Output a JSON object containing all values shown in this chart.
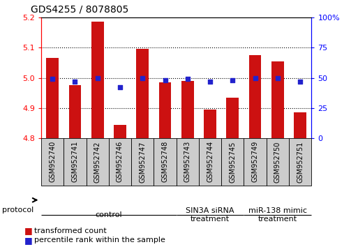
{
  "title": "GDS4255 / 8078805",
  "samples": [
    "GSM952740",
    "GSM952741",
    "GSM952742",
    "GSM952746",
    "GSM952747",
    "GSM952748",
    "GSM952743",
    "GSM952744",
    "GSM952745",
    "GSM952749",
    "GSM952750",
    "GSM952751"
  ],
  "transformed_count": [
    5.065,
    4.975,
    5.185,
    4.845,
    5.095,
    4.985,
    4.99,
    4.895,
    4.935,
    5.075,
    5.055,
    4.885
  ],
  "percentile_rank": [
    49,
    47,
    50,
    42,
    50,
    48,
    49,
    47,
    48,
    50,
    50,
    47
  ],
  "ylim_left": [
    4.8,
    5.2
  ],
  "ylim_right": [
    0,
    100
  ],
  "yticks_left": [
    4.8,
    4.9,
    5.0,
    5.1,
    5.2
  ],
  "yticks_right": [
    0,
    25,
    50,
    75,
    100
  ],
  "bar_color": "#cc1111",
  "dot_color": "#2222cc",
  "bg_color_samples": "#cccccc",
  "protocol_groups": [
    {
      "label": "control",
      "start": 0,
      "end": 5,
      "color": "#ccffcc"
    },
    {
      "label": "SIN3A siRNA\ntreatment",
      "start": 6,
      "end": 8,
      "color": "#ccffcc"
    },
    {
      "label": "miR-138 mimic\ntreatment",
      "start": 9,
      "end": 11,
      "color": "#44cc44"
    }
  ],
  "legend_bar_label": "transformed count",
  "legend_dot_label": "percentile rank within the sample",
  "bar_width": 0.55,
  "tick_fontsize": 8,
  "sample_label_fontsize": 7,
  "protocol_label_fontsize": 8,
  "title_fontsize": 10,
  "legend_fontsize": 8
}
